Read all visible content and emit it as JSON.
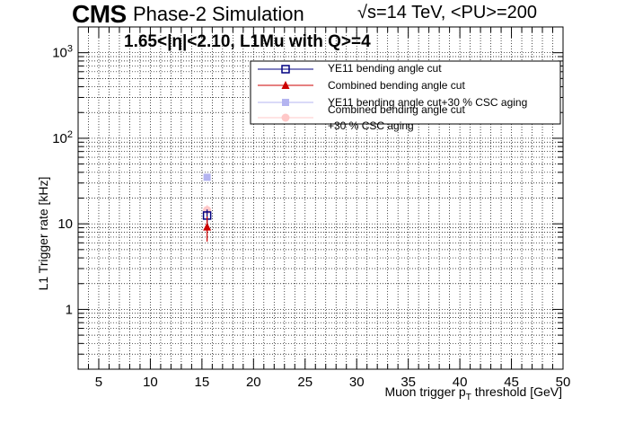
{
  "header": {
    "cms": "CMS",
    "simulation": "Phase-2 Simulation",
    "energy": "√s=14 TeV, <PU>=200",
    "region": "1.65<|η|<2.10, L1Mu with Q>=4"
  },
  "colors": {
    "ye11": "#000080",
    "combined": "#cc0000",
    "ye11_aging": "#b4b4f0",
    "combined_aging": "#ffc8c8"
  },
  "chart_data": {
    "type": "scatter",
    "xlabel": "Muon trigger p_T threshold [GeV]",
    "ylabel": "L1 Trigger rate [kHz]",
    "xlim": [
      3,
      50
    ],
    "ylim": [
      0.2,
      2000
    ],
    "yscale": "log",
    "grid": true,
    "legend_position": "top-right",
    "x_ticks": [
      5,
      10,
      15,
      20,
      25,
      30,
      35,
      40,
      45,
      50
    ],
    "y_ticks": [
      {
        "value": 1,
        "label": "1"
      },
      {
        "value": 10,
        "label": "10"
      },
      {
        "value": 100,
        "label": "10^2"
      },
      {
        "value": 1000,
        "label": "10^3"
      }
    ],
    "series": [
      {
        "name": "YE11 bending angle cut",
        "marker": "open-square",
        "color": "#000080",
        "x": [
          15.5
        ],
        "y": [
          12.5
        ],
        "yerr": [
          2.2
        ]
      },
      {
        "name": "Combined bending angle cut",
        "marker": "triangle",
        "color": "#cc0000",
        "x": [
          15.5
        ],
        "y": [
          9.2
        ],
        "yerr": [
          3.0
        ]
      },
      {
        "name": "YE11 bending angle cut+30 % CSC aging",
        "marker": "filled-square",
        "color": "#b4b4f0",
        "x": [
          15.5
        ],
        "y": [
          35
        ],
        "yerr": [
          3.0
        ]
      },
      {
        "name": "Combined bending angle cut +30 % CSC aging",
        "marker": "circle",
        "color": "#ffc8c8",
        "x": [
          15.5
        ],
        "y": [
          14.5
        ],
        "yerr": [
          2.0
        ]
      }
    ]
  },
  "legend": {
    "entries": [
      "YE11 bending angle cut",
      "Combined bending angle cut",
      "YE11 bending angle cut+30 % CSC aging",
      "Combined bending angle cut",
      "+30 % CSC aging"
    ]
  }
}
